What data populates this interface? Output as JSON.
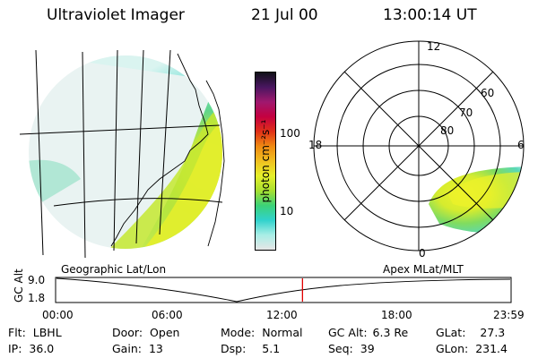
{
  "header": {
    "title": "Ultraviolet Imager",
    "date": "21 Jul 00",
    "time": "13:00:14 UT"
  },
  "colorbar": {
    "unit_label": "photon cm⁻²s⁻¹",
    "tick_100": "100",
    "tick_10": "10",
    "scale": "log",
    "stops": [
      "#e6e6e6",
      "#a8eee6",
      "#30d2cc",
      "#3cd277",
      "#a8e030",
      "#e6f02a",
      "#f0c020",
      "#ef8a12",
      "#e03018",
      "#c40040",
      "#a0186e",
      "#4a1660",
      "#101018"
    ]
  },
  "map_labels": {
    "geographic": "Geographic Lat/Lon",
    "apex": "Apex MLat/MLT"
  },
  "polar": {
    "mlt": {
      "top": "12",
      "left": "18",
      "right": "6",
      "bottom": "0"
    },
    "mlat": {
      "r60": "60",
      "r70": "70",
      "r80": "80"
    }
  },
  "altitude_plot": {
    "ylabel": "GC Alt",
    "y_top": "9.0",
    "y_bottom": "1.8",
    "x_ticks": [
      "00:00",
      "06:00",
      "12:00",
      "18:00",
      "23:59"
    ],
    "current_time_marker": "13:00:14",
    "marker_color": "#e00000"
  },
  "info": {
    "flt_label": "Flt:",
    "flt_value": "LBHL",
    "ip_label": "IP:",
    "ip_value": "36.0",
    "door_label": "Door:",
    "door_value": "Open",
    "gain_label": "Gain:",
    "gain_value": "13",
    "mode_label": "Mode:",
    "mode_value": "Normal",
    "dsp_label": "Dsp:",
    "dsp_value": "5.1",
    "gcalt_label": "GC Alt:",
    "gcalt_value": "6.3 Re",
    "seq_label": "Seq:",
    "seq_value": "39",
    "glat_label": "GLat:",
    "glat_value": "27.3",
    "glon_label": "GLon:",
    "glon_value": "231.4"
  }
}
